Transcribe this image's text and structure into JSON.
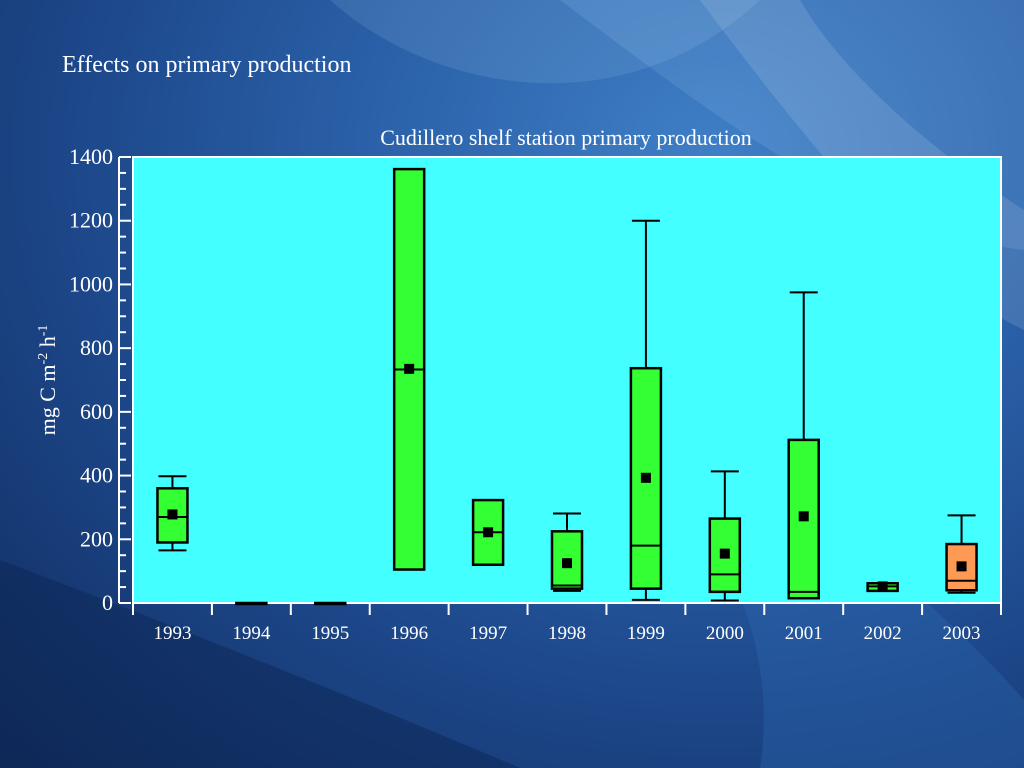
{
  "slide": {
    "title": "Effects on primary production"
  },
  "colors": {
    "plot_background": "#43ffff",
    "box_green": "#33ff33",
    "box_orange": "#ff9a55",
    "text": "#ffffff",
    "stroke": "#000000"
  },
  "chart_data": {
    "type": "box",
    "title": "Cudillero shelf station primary production",
    "ylabel": "mg C m-2 h-1",
    "ylabel_parts": [
      "mg C m",
      "-2",
      " h",
      "-1"
    ],
    "ylim": [
      0,
      1400
    ],
    "yticks": [
      0,
      200,
      400,
      600,
      800,
      1000,
      1200,
      1400
    ],
    "categories": [
      "1993",
      "1994",
      "1995",
      "1996",
      "1997",
      "1998",
      "1999",
      "2000",
      "2001",
      "2002",
      "2003"
    ],
    "boxes": [
      {
        "x": "1993",
        "min": 165,
        "q1": 190,
        "median": 270,
        "q3": 360,
        "max": 398,
        "mean": 278,
        "color": "green"
      },
      {
        "x": "1994",
        "min": 0,
        "q1": 0,
        "median": 0,
        "q3": 0,
        "max": 0,
        "mean": null,
        "color": "green"
      },
      {
        "x": "1995",
        "min": 0,
        "q1": 0,
        "median": 0,
        "q3": 0,
        "max": 0,
        "mean": null,
        "color": "green"
      },
      {
        "x": "1996",
        "min": 105,
        "q1": 105,
        "median": 733,
        "q3": 1362,
        "max": 1362,
        "mean": 735,
        "color": "green"
      },
      {
        "x": "1997",
        "min": 120,
        "q1": 120,
        "median": 222,
        "q3": 323,
        "max": 323,
        "mean": 222,
        "color": "green"
      },
      {
        "x": "1998",
        "min": 38,
        "q1": 45,
        "median": 55,
        "q3": 225,
        "max": 281,
        "mean": 125,
        "color": "green"
      },
      {
        "x": "1999",
        "min": 10,
        "q1": 45,
        "median": 180,
        "q3": 737,
        "max": 1200,
        "mean": 393,
        "color": "green"
      },
      {
        "x": "2000",
        "min": 8,
        "q1": 35,
        "median": 90,
        "q3": 265,
        "max": 413,
        "mean": 155,
        "color": "green"
      },
      {
        "x": "2001",
        "min": 15,
        "q1": 15,
        "median": 35,
        "q3": 512,
        "max": 975,
        "mean": 272,
        "color": "green"
      },
      {
        "x": "2002",
        "min": 38,
        "q1": 38,
        "median": 52,
        "q3": 62,
        "max": 62,
        "mean": 52,
        "color": "green"
      },
      {
        "x": "2003",
        "min": 32,
        "q1": 40,
        "median": 70,
        "q3": 185,
        "max": 275,
        "mean": 115,
        "color": "orange"
      }
    ]
  }
}
